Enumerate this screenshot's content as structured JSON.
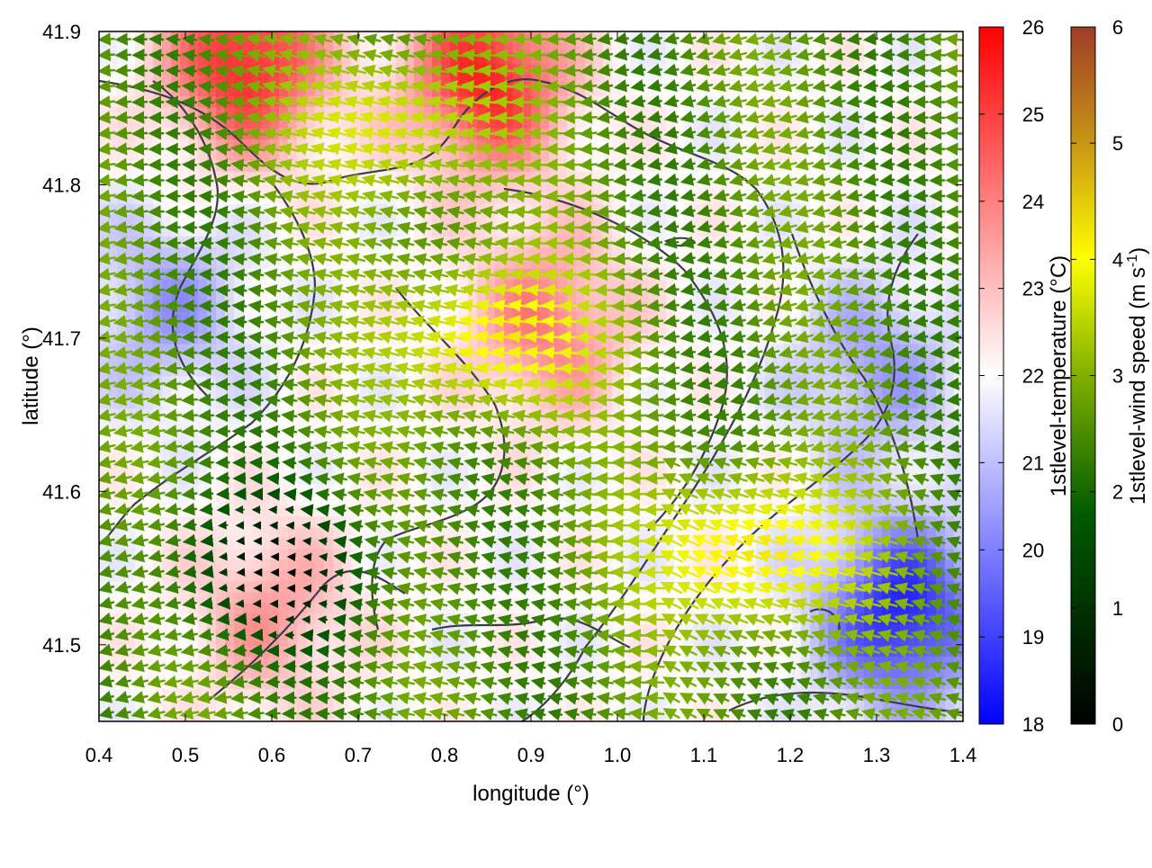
{
  "chart_data": {
    "type": "heatmap",
    "subtype": "temperature field with wind vector arrows and contour lines",
    "xlabel": "longitude (°)",
    "ylabel": "latitude (°)",
    "xlim": [
      0.4,
      1.4
    ],
    "ylim": [
      41.45,
      41.9
    ],
    "x_ticks": [
      "0.4",
      "0.5",
      "0.6",
      "0.7",
      "0.8",
      "0.9",
      "1.0",
      "1.1",
      "1.2",
      "1.3",
      "1.4"
    ],
    "y_ticks": [
      "41.5",
      "41.6",
      "41.7",
      "41.8",
      "41.9"
    ],
    "grid": false,
    "colorbars": [
      {
        "label": "1stlevel-temperature (°C)",
        "range": [
          18,
          26
        ],
        "ticks": [
          "18",
          "19",
          "20",
          "21",
          "22",
          "23",
          "24",
          "25",
          "26"
        ],
        "colormap": [
          "#0000ff",
          "#ffffff",
          "#ff0000"
        ]
      },
      {
        "label_main": "1stlevel-wind speed (m s",
        "label_sup": "-1",
        "label_end": ")",
        "range": [
          0,
          6
        ],
        "ticks": [
          "0",
          "1",
          "2",
          "3",
          "4",
          "5",
          "6"
        ],
        "colormap": [
          "#000000",
          "#005a00",
          "#7fb000",
          "#ffff00",
          "#c89614",
          "#a03c28"
        ]
      }
    ],
    "temperature_features": [
      {
        "region": "north-west warm core",
        "lon": 0.57,
        "lat": 41.88,
        "temp": 25.5
      },
      {
        "region": "north-central warm core",
        "lon": 0.85,
        "lat": 41.87,
        "temp": 25.5
      },
      {
        "region": "central warm band",
        "lon": 0.92,
        "lat": 41.71,
        "temp": 24.0
      },
      {
        "region": "south-west warm area",
        "lon": 0.6,
        "lat": 41.52,
        "temp": 23.5
      },
      {
        "region": "west cool area",
        "lon": 0.48,
        "lat": 41.72,
        "temp": 20.5
      },
      {
        "region": "south-east cold core",
        "lon": 1.33,
        "lat": 41.52,
        "temp": 18.5
      },
      {
        "region": "east cool area",
        "lon": 1.3,
        "lat": 41.68,
        "temp": 20.5
      }
    ],
    "wind_features": [
      {
        "region": "dominant flow",
        "direction": "from east to west",
        "speed": 2.0
      },
      {
        "region": "north jet",
        "lon": 0.75,
        "lat": 41.84,
        "speed": 3.5
      },
      {
        "region": "central jet",
        "lon": 0.86,
        "lat": 41.7,
        "speed": 4.0
      },
      {
        "region": "south-east jet",
        "lon": 1.16,
        "lat": 41.56,
        "speed": 4.2
      },
      {
        "region": "calm south-west",
        "lon": 0.6,
        "lat": 41.55,
        "speed": 0.4
      }
    ]
  }
}
